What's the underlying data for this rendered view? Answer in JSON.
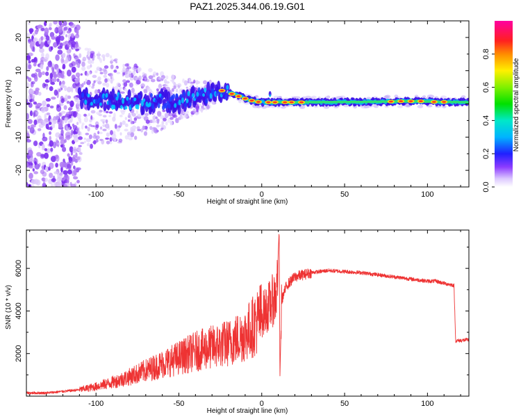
{
  "page_title": "PAZ1.2025.344.06.19.G01",
  "colors": {
    "snr_line": "#ee3333",
    "axes": "#000000"
  },
  "chart_data": [
    {
      "type": "heatmap",
      "title": "PAZ1.2025.344.06.19.G01",
      "xlabel": "Height of straight line (km)",
      "ylabel": "Frequency (Hz)",
      "xlim": [
        -142,
        125
      ],
      "ylim": [
        -25,
        25
      ],
      "xticks": [
        "-100",
        "-50",
        "0",
        "50",
        "100"
      ],
      "xtick_values": [
        -100,
        -50,
        0,
        50,
        100
      ],
      "yticks": [
        "-20",
        "-10",
        "0",
        "10",
        "20"
      ],
      "ytick_values": [
        -20,
        -10,
        0,
        10,
        20
      ],
      "ridge": {
        "description_points": [
          {
            "x": -110,
            "freq": 1.5
          },
          {
            "x": -90,
            "freq": 1.0
          },
          {
            "x": -70,
            "freq": 0.5
          },
          {
            "x": -50,
            "freq": 1.0
          },
          {
            "x": -40,
            "freq": 2.0
          },
          {
            "x": -30,
            "freq": 3.0
          },
          {
            "x": -23,
            "freq": 4.0
          },
          {
            "x": -17,
            "freq": 3.0
          },
          {
            "x": -12,
            "freq": 2.0
          },
          {
            "x": -6,
            "freq": 1.0
          },
          {
            "x": 0,
            "freq": 0.5
          },
          {
            "x": 8,
            "freq": 0.5
          },
          {
            "x": 20,
            "freq": 0.5
          },
          {
            "x": 60,
            "freq": 0.6
          },
          {
            "x": 90,
            "freq": 0.8
          },
          {
            "x": 110,
            "freq": 0.6
          },
          {
            "x": 125,
            "freq": 0.5
          }
        ]
      },
      "colorbar": {
        "label": "Normalized spectral amplitude",
        "ticks": [
          "0.0",
          "0.2",
          "0.4",
          "0.6",
          "0.8"
        ],
        "tick_values": [
          0.0,
          0.2,
          0.4,
          0.6,
          0.8
        ],
        "range": [
          0,
          1
        ]
      }
    },
    {
      "type": "line",
      "title": "",
      "xlabel": "Height of straight line (km)",
      "ylabel": "SNR (10 * v/v)",
      "xlim": [
        -142,
        125
      ],
      "ylim": [
        0,
        7800
      ],
      "xticks": [
        "-100",
        "-50",
        "0",
        "50",
        "100"
      ],
      "xtick_values": [
        -100,
        -50,
        0,
        50,
        100
      ],
      "yticks": [
        "2000",
        "4000",
        "6000"
      ],
      "ytick_values": [
        2000,
        4000,
        6000
      ],
      "series": [
        {
          "name": "SNR",
          "x": [
            -142,
            -130,
            -120,
            -110,
            -100,
            -90,
            -80,
            -70,
            -60,
            -50,
            -40,
            -30,
            -20,
            -10,
            -5,
            0,
            5,
            9,
            10.5,
            11,
            12,
            15,
            20,
            30,
            40,
            50,
            60,
            70,
            80,
            90,
            95,
            100,
            105,
            110,
            116,
            117,
            118,
            125
          ],
          "values": [
            150,
            150,
            220,
            300,
            450,
            650,
            900,
            1200,
            1500,
            1800,
            2100,
            2300,
            2500,
            2900,
            3300,
            3800,
            4300,
            4800,
            7800,
            950,
            4500,
            5200,
            5600,
            5800,
            5900,
            5850,
            5800,
            5700,
            5600,
            5500,
            5450,
            5400,
            5400,
            5300,
            5200,
            2600,
            2600,
            2650
          ]
        }
      ]
    }
  ]
}
